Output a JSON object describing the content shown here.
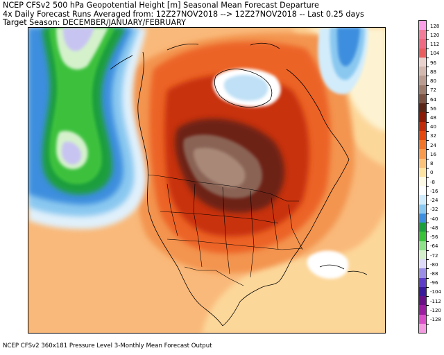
{
  "title": {
    "line1": "NCEP CFSv2 500 hPa Geopotential Height [m] Seasonal Mean Forecast Departure",
    "line2": "4x Daily Forecast Runs Averaged from: 12Z27NOV2018 --> 12Z27NOV2018 -- Last 0.25 days",
    "line3": "Target Season: DECEMBER/JANUARY/FEBRUARY"
  },
  "footer": "NCEP CFSv2 360x181 Pressure Level 3-Monthly Mean Forecast Output",
  "colorbar": {
    "levels": [
      {
        "label": "128",
        "color": "#fa9fe8"
      },
      {
        "label": "120",
        "color": "#f27d9a"
      },
      {
        "label": "112",
        "color": "#ef6a83"
      },
      {
        "label": "104",
        "color": "#ea5d5f"
      },
      {
        "label": "96",
        "color": "#e9d2cd"
      },
      {
        "label": "88",
        "color": "#d3b8b0"
      },
      {
        "label": "80",
        "color": "#bb9c90"
      },
      {
        "label": "72",
        "color": "#9e7c6d"
      },
      {
        "label": "64",
        "color": "#7b5142"
      },
      {
        "label": "56",
        "color": "#5a2516"
      },
      {
        "label": "48",
        "color": "#8a1a05"
      },
      {
        "label": "40",
        "color": "#c02c0a"
      },
      {
        "label": "32",
        "color": "#e4480f"
      },
      {
        "label": "24",
        "color": "#f07528"
      },
      {
        "label": "16",
        "color": "#f79a4e"
      },
      {
        "label": "8",
        "color": "#fbc27c"
      },
      {
        "label": "0",
        "color": "#fde4a3"
      },
      {
        "label": "-8",
        "color": "#fdfbe6"
      },
      {
        "label": "-16",
        "color": "#ffffff"
      },
      {
        "label": "-24",
        "color": "#d2ecfb"
      },
      {
        "label": "-32",
        "color": "#8ac8f0"
      },
      {
        "label": "-40",
        "color": "#3d8ede"
      },
      {
        "label": "-48",
        "color": "#1b9e3c"
      },
      {
        "label": "-56",
        "color": "#39c13a"
      },
      {
        "label": "-64",
        "color": "#8fe28a"
      },
      {
        "label": "-72",
        "color": "#d4f1cc"
      },
      {
        "label": "-80",
        "color": "#dedcf8"
      },
      {
        "label": "-88",
        "color": "#9b8ee6"
      },
      {
        "label": "-96",
        "color": "#5e3ec9"
      },
      {
        "label": "-104",
        "color": "#3a1a9a"
      },
      {
        "label": "-112",
        "color": "#6a1087"
      },
      {
        "label": "-120",
        "color": "#9b1ea0"
      },
      {
        "label": "-128",
        "color": "#d84fc8"
      }
    ],
    "bottom_color": "#f39ae0"
  }
}
